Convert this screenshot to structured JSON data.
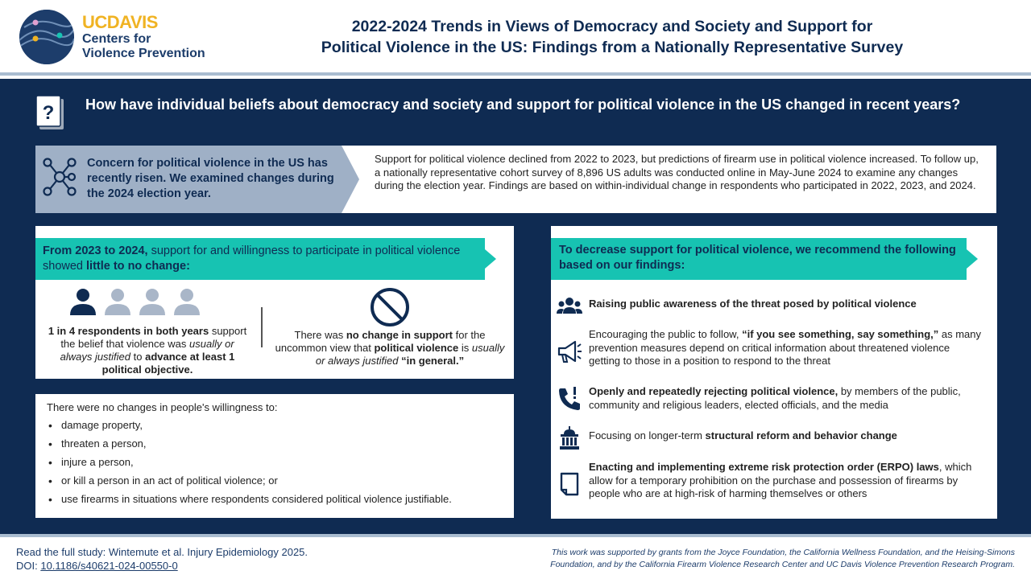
{
  "header": {
    "logo_brand": "UCDAVIS",
    "logo_line1": "Centers for",
    "logo_line2": "Violence Prevention",
    "title_line1": "2022-2024 Trends in Views of Democracy and Society and Support for",
    "title_line2": "Political Violence in the US: Findings from a Nationally Representative Survey"
  },
  "question": {
    "text": "How have individual beliefs about democracy and society and support for political violence in the US changed in recent years?"
  },
  "intro": {
    "left": "Concern for political violence in the US has recently risen. We examined changes during the 2024 election year.",
    "right": "Support for political violence declined from 2022 to 2023, but predictions of firearm use in political violence increased. To follow up, a nationally representative cohort survey of 8,896 US adults was conducted online in May-June 2024 to examine any changes during the election year. Findings are based on within-individual change in respondents who participated in 2022, 2023, and 2024."
  },
  "left_panel": {
    "heading_bold1": "From 2023 to 2024,",
    "heading_mid": " support for and willingness to participate in political violence showed ",
    "heading_bold2": "little to no change:",
    "stat1_bold": "1 in 4 respondents in both years",
    "stat1_a": " support the belief that violence was ",
    "stat1_italic": "usually or always justified",
    "stat1_b": " to ",
    "stat1_bold2": "advance at least 1 political objective.",
    "stat2_a": "There was ",
    "stat2_bold1": "no change in support",
    "stat2_b": " for the uncommon view that ",
    "stat2_bold2": "political violence",
    "stat2_c": " is ",
    "stat2_italic": "usually or always justified",
    "stat2_d": " ",
    "stat2_bold3": "“in general.”"
  },
  "list_panel": {
    "intro": "There were no changes in people's willingness to:",
    "items": [
      "damage property,",
      "threaten a person,",
      "injure a person,",
      "or kill a person in an act of political violence; or",
      "use firearms in situations where respondents considered political violence justifiable."
    ]
  },
  "right_panel": {
    "heading": "To decrease support for political violence, we recommend the following based on our findings:",
    "rec1_bold": "Raising public awareness of the threat posed by political violence",
    "rec2_a": "Encouraging the public to follow, ",
    "rec2_bold": "“if you see something, say something,”",
    "rec2_b": " as many prevention measures depend on critical information about threatened violence getting to those in a position to respond to the threat",
    "rec3_bold": "Openly and repeatedly rejecting political violence,",
    "rec3_a": " by members of the public, community and religious leaders, elected officials, and the media",
    "rec4_a": "Focusing on longer-term ",
    "rec4_bold": "structural reform and behavior change",
    "rec5_bold": "Enacting and implementing extreme risk protection order (ERPO) laws",
    "rec5_a": ", which allow for a temporary prohibition on the purchase and possession of firearms by people who are at high-risk of harming themselves or others"
  },
  "footer": {
    "study": "Read the full study: Wintemute et al. Injury Epidemiology 2025.",
    "doi_label": "DOI: ",
    "doi_link": "10.1186/s40621-024-00550-0",
    "funding_line1": "This work was supported by grants from the Joyce Foundation, the California Wellness Foundation, and the Heising-Simons",
    "funding_line2": "Foundation, and by the California Firearm Violence Research Center and UC Davis Violence Prevention Research Program."
  },
  "colors": {
    "navy": "#0f2b52",
    "teal": "#17c3b2",
    "slate": "#9fb0c6",
    "gold": "#f0b323"
  }
}
